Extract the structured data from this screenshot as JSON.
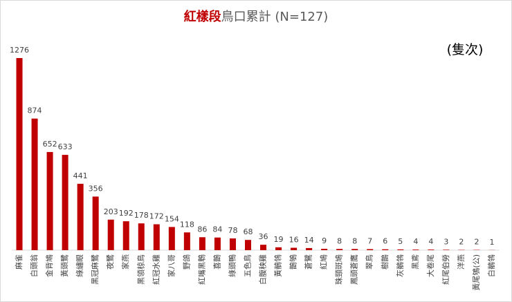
{
  "chart_data": {
    "type": "bar",
    "title_parts": [
      "紅樣段",
      "鳥口累計 (N=127)"
    ],
    "unit_label": "(隻次)",
    "categories": [
      "麻雀",
      "白頭翁",
      "金背鳩",
      "黃頭鷺",
      "綠繡眼",
      "黑冠麻鷺",
      "夜鷺",
      "家燕",
      "黑領椋鳥",
      "紅冠水雞",
      "家八哥",
      "野鴿",
      "紅嘴黑鵯",
      "喜鵲",
      "綠頭鴨",
      "五色鳥",
      "白腹秧雞",
      "黃鶺鴒",
      "鵲鴝",
      "蒼鷺",
      "紅鳩",
      "珠頸斑鳩",
      "鳳頭蒼鷹",
      "翠鳥",
      "樹鵲",
      "灰鶺鴒",
      "黑鳶",
      "大卷尾",
      "紅尾伯勞",
      "洋燕",
      "黃尾鴝(公)",
      "白鶺鴒"
    ],
    "values": [
      1276,
      874,
      652,
      633,
      441,
      356,
      203,
      192,
      178,
      172,
      154,
      118,
      86,
      84,
      78,
      68,
      36,
      19,
      16,
      14,
      9,
      8,
      8,
      7,
      6,
      5,
      4,
      4,
      3,
      2,
      2,
      1
    ],
    "color": "#c00000",
    "ylim": [
      0,
      1400
    ]
  }
}
